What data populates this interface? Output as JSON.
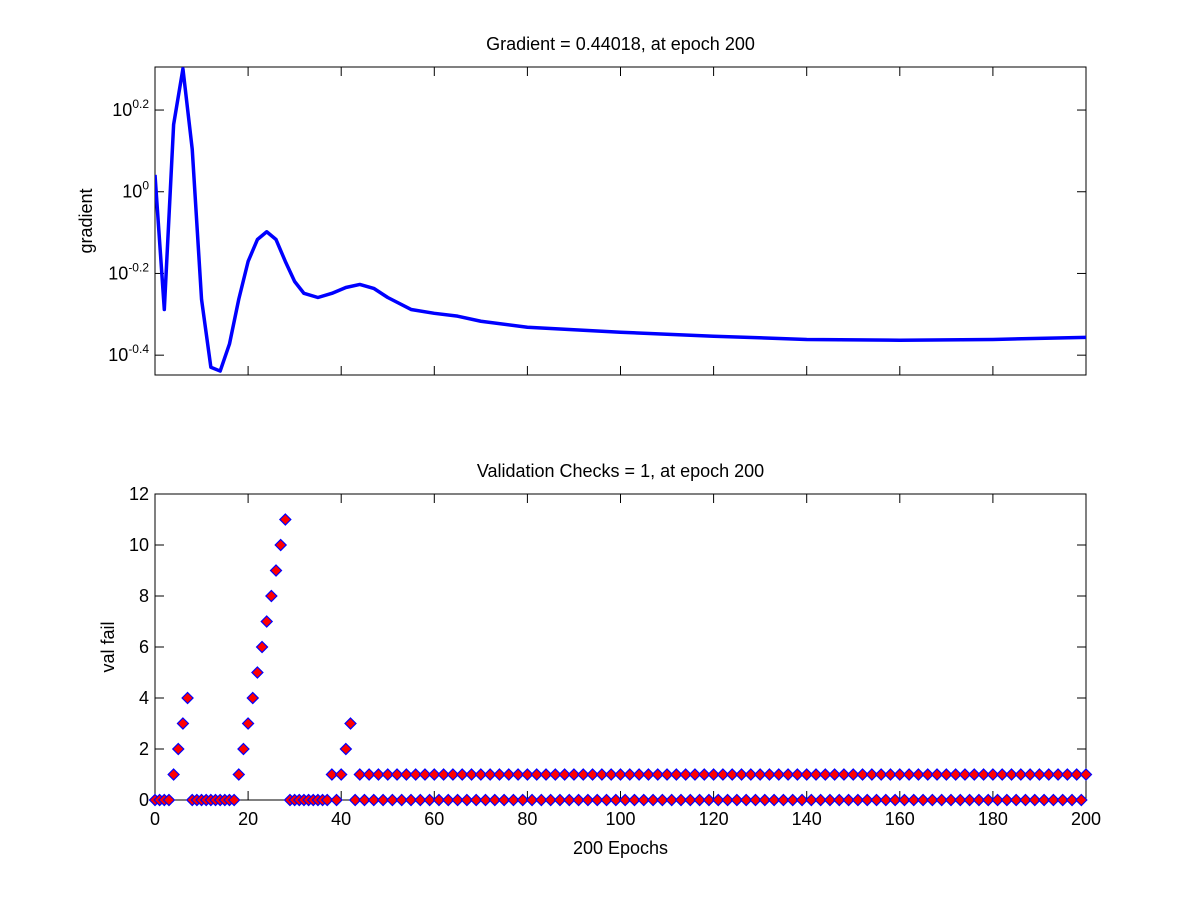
{
  "chart_data": [
    {
      "type": "line",
      "title": "Gradient = 0.44018, at epoch 200",
      "ylabel": "gradient",
      "yscale": "log",
      "color": "#0000ff",
      "x": [
        0,
        2,
        4,
        6,
        8,
        10,
        12,
        14,
        16,
        18,
        20,
        22,
        24,
        26,
        28,
        30,
        32,
        35,
        38,
        41,
        44,
        47,
        50,
        55,
        60,
        65,
        70,
        80,
        100,
        120,
        140,
        160,
        180,
        200
      ],
      "values": [
        1.1,
        0.515,
        1.46,
        2.0,
        1.27,
        0.545,
        0.372,
        0.364,
        0.424,
        0.546,
        0.675,
        0.764,
        0.798,
        0.764,
        0.675,
        0.603,
        0.564,
        0.551,
        0.564,
        0.583,
        0.593,
        0.58,
        0.551,
        0.515,
        0.504,
        0.496,
        0.482,
        0.466,
        0.453,
        0.443,
        0.435,
        0.433,
        0.435,
        0.44018
      ],
      "xlim": [
        0,
        200
      ],
      "xticks": [
        0,
        20,
        40,
        60,
        80,
        100,
        120,
        140,
        160,
        180,
        200
      ],
      "ylim": [
        0.356,
        2.02
      ],
      "yticks": [
        {
          "value": 0.3981,
          "label": "10^-0.4"
        },
        {
          "value": 0.631,
          "label": "10^-0.2"
        },
        {
          "value": 1,
          "label": "10^0"
        },
        {
          "value": 1.5849,
          "label": "10^0.2"
        }
      ]
    },
    {
      "type": "scatter",
      "title": "Validation Checks = 1, at epoch 200",
      "ylabel": "val fail",
      "xlabel": "200 Epochs",
      "color": "#ff0000",
      "edgecolor": "#0000ff",
      "x": [
        0,
        1,
        2,
        3,
        4,
        5,
        6,
        7,
        8,
        9,
        10,
        11,
        12,
        13,
        14,
        15,
        16,
        17,
        18,
        19,
        20,
        21,
        22,
        23,
        24,
        25,
        26,
        27,
        28,
        29,
        30,
        31,
        32,
        33,
        34,
        35,
        36,
        37,
        38,
        39,
        40,
        41,
        42,
        43,
        44,
        45,
        46,
        47,
        48,
        49,
        50,
        51,
        52,
        53,
        54,
        55,
        56,
        57,
        58,
        59,
        60,
        61,
        62,
        63,
        64,
        65,
        66,
        67,
        68,
        69,
        70,
        71,
        72,
        73,
        74,
        75,
        76,
        77,
        78,
        79,
        80,
        81,
        82,
        83,
        84,
        85,
        86,
        87,
        88,
        89,
        90,
        91,
        92,
        93,
        94,
        95,
        96,
        97,
        98,
        99,
        100,
        101,
        102,
        103,
        104,
        105,
        106,
        107,
        108,
        109,
        110,
        111,
        112,
        113,
        114,
        115,
        116,
        117,
        118,
        119,
        120,
        121,
        122,
        123,
        124,
        125,
        126,
        127,
        128,
        129,
        130,
        131,
        132,
        133,
        134,
        135,
        136,
        137,
        138,
        139,
        140,
        141,
        142,
        143,
        144,
        145,
        146,
        147,
        148,
        149,
        150,
        151,
        152,
        153,
        154,
        155,
        156,
        157,
        158,
        159,
        160,
        161,
        162,
        163,
        164,
        165,
        166,
        167,
        168,
        169,
        170,
        171,
        172,
        173,
        174,
        175,
        176,
        177,
        178,
        179,
        180,
        181,
        182,
        183,
        184,
        185,
        186,
        187,
        188,
        189,
        190,
        191,
        192,
        193,
        194,
        195,
        196,
        197,
        198,
        199,
        200
      ],
      "values": [
        0,
        0,
        0,
        0,
        1,
        2,
        3,
        4,
        0,
        0,
        0,
        0,
        0,
        0,
        0,
        0,
        0,
        0,
        1,
        2,
        3,
        4,
        5,
        6,
        7,
        8,
        9,
        10,
        11,
        0,
        0,
        0,
        0,
        0,
        0,
        0,
        0,
        0,
        1,
        0,
        1,
        2,
        3,
        0,
        1,
        0,
        1,
        0,
        1,
        0,
        1,
        0,
        1,
        0,
        1,
        0,
        1,
        0,
        1,
        0,
        1,
        0,
        1,
        0,
        1,
        0,
        1,
        0,
        1,
        0,
        1,
        0,
        1,
        0,
        1,
        0,
        1,
        0,
        1,
        0,
        1,
        0,
        1,
        0,
        1,
        0,
        1,
        0,
        1,
        0,
        1,
        0,
        1,
        0,
        1,
        0,
        1,
        0,
        1,
        0,
        1,
        0,
        1,
        0,
        1,
        0,
        1,
        0,
        1,
        0,
        1,
        0,
        1,
        0,
        1,
        0,
        1,
        0,
        1,
        0,
        1,
        0,
        1,
        0,
        1,
        0,
        1,
        0,
        1,
        0,
        1,
        0,
        1,
        0,
        1,
        0,
        1,
        0,
        1,
        0,
        1,
        0,
        1,
        0,
        1,
        0,
        1,
        0,
        1,
        0,
        1,
        0,
        1,
        0,
        1,
        0,
        1,
        0,
        1,
        0,
        1,
        0,
        1,
        0,
        1,
        0,
        1,
        0,
        1,
        0,
        1,
        0,
        1,
        0,
        1,
        0,
        1,
        0,
        1,
        0,
        1,
        0,
        1,
        0,
        1,
        0,
        1,
        0,
        1,
        0,
        1,
        0,
        1,
        0,
        1,
        0,
        1,
        0,
        1,
        0,
        1
      ],
      "xlim": [
        0,
        200
      ],
      "xticks": [
        0,
        20,
        40,
        60,
        80,
        100,
        120,
        140,
        160,
        180,
        200
      ],
      "ylim": [
        0,
        12
      ],
      "yticks": [
        0,
        2,
        4,
        6,
        8,
        10,
        12
      ]
    }
  ]
}
